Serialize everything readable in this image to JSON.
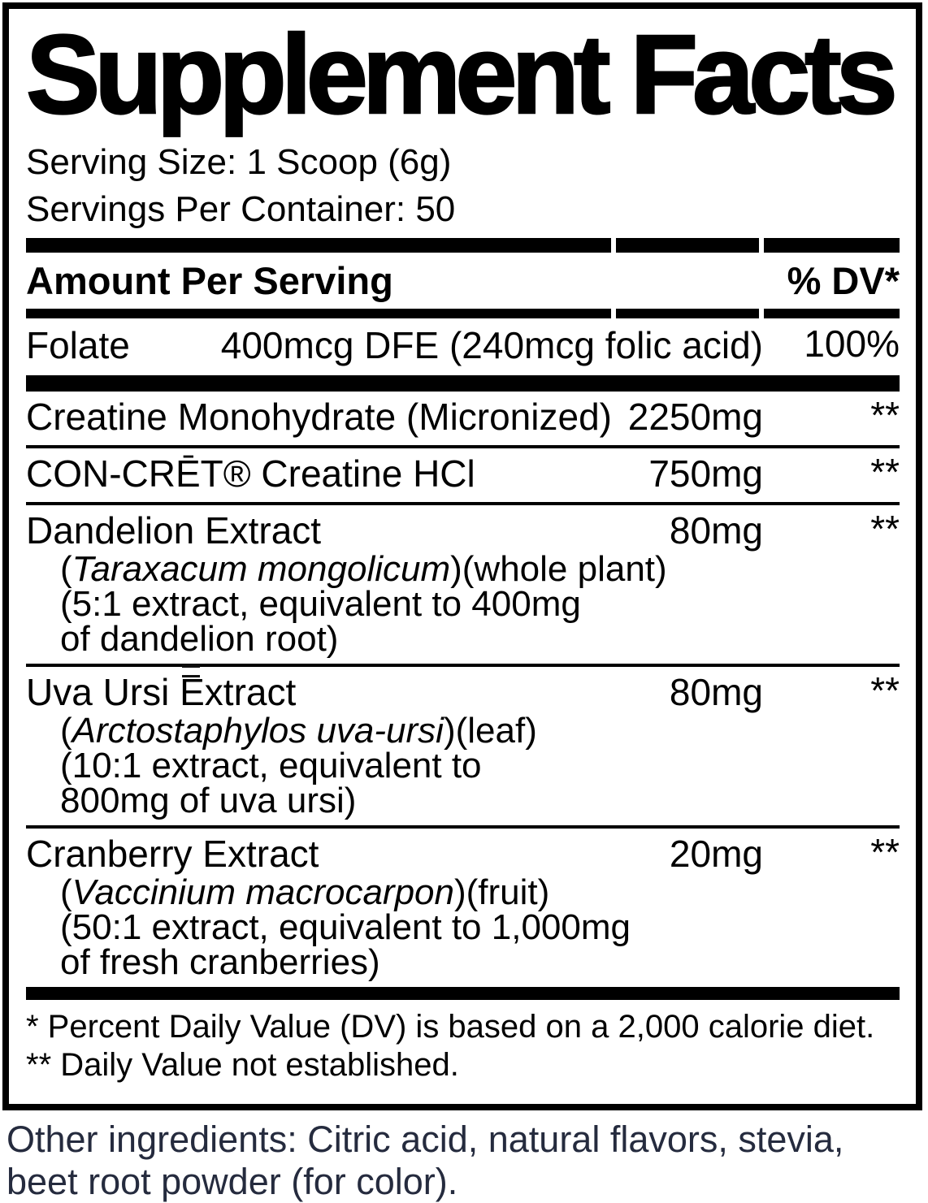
{
  "title": "Supplement Facts",
  "serving": {
    "size_line": "Serving Size: 1 Scoop (6g)",
    "per_container_line": "Servings Per Container: 50"
  },
  "header": {
    "amount_label": "Amount Per Serving",
    "dv_label": "% DV*"
  },
  "nutrients": [
    {
      "name": "Folate",
      "amount": "400mcg DFE (240mcg folic acid)",
      "dv": "100%"
    }
  ],
  "ingredients": [
    {
      "name": "Creatine Monohydrate (Micronized)",
      "amount": "2250mg",
      "dv": "**",
      "sub": []
    },
    {
      "name": "CON-CRĒT® Creatine HCl",
      "amount": "750mg",
      "dv": "**",
      "sub": []
    },
    {
      "name": "Dandelion Extract",
      "amount": "80mg",
      "dv": "**",
      "sub": [
        [
          {
            "text": "(",
            "italic": false
          },
          {
            "text": "Taraxacum mongolicum",
            "italic": true
          },
          {
            "text": ")(whole plant)",
            "italic": false
          }
        ],
        [
          {
            "text": "(5:1 extract, equivalent to 400mg",
            "italic": false
          }
        ],
        [
          {
            "text": "of dandelion root)",
            "italic": false
          }
        ]
      ]
    },
    {
      "name": "Uva Ursi Extract",
      "amount": "80mg",
      "dv": "**",
      "has_print_artifact": true,
      "sub": [
        [
          {
            "text": "(",
            "italic": false
          },
          {
            "text": "Arctostaphylos uva-ursi",
            "italic": true
          },
          {
            "text": ")(leaf)",
            "italic": false
          }
        ],
        [
          {
            "text": "(10:1 extract, equivalent to",
            "italic": false
          }
        ],
        [
          {
            "text": "800mg of uva ursi)",
            "italic": false
          }
        ]
      ]
    },
    {
      "name": "Cranberry Extract",
      "amount": "20mg",
      "dv": "**",
      "sub": [
        [
          {
            "text": "(",
            "italic": false
          },
          {
            "text": "Vaccinium macrocarpon",
            "italic": true
          },
          {
            "text": ")(fruit)",
            "italic": false
          }
        ],
        [
          {
            "text": "(50:1 extract, equivalent to 1,000mg",
            "italic": false
          }
        ],
        [
          {
            "text": "of fresh cranberries)",
            "italic": false
          }
        ]
      ]
    }
  ],
  "footnotes": [
    "* Percent Daily Value (DV) is based on a 2,000 calorie diet.",
    "** Daily Value not established."
  ],
  "other_ingredients": "Other ingredients: Citric acid, natural flavors, stevia, beet root powder (for color).",
  "colors": {
    "label_text": "#000000",
    "other_ingredients_text": "#252b3e",
    "bar": "#000000",
    "background": "#ffffff"
  },
  "icons": {
    "uva_ursi_artifact": "stray-print-mark"
  }
}
